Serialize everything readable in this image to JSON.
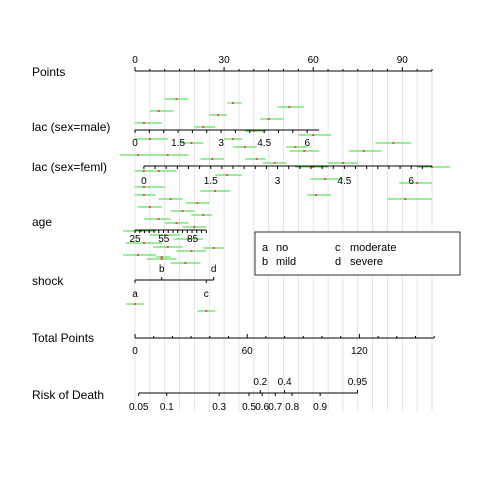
{
  "chart_data": {
    "type": "nomogram",
    "legend": {
      "position": "right",
      "entries": [
        {
          "code": "a",
          "label": "no"
        },
        {
          "code": "b",
          "label": "mild"
        },
        {
          "code": "c",
          "label": "moderate"
        },
        {
          "code": "d",
          "label": "severe"
        }
      ]
    },
    "scales": [
      {
        "id": "points",
        "label": "Points",
        "min": 0,
        "max": 100,
        "labels": [
          {
            "value": 0,
            "text": "0"
          },
          {
            "value": 30,
            "text": "30"
          },
          {
            "value": 60,
            "text": "60"
          },
          {
            "value": 90,
            "text": "90"
          }
        ],
        "minor_step": 5
      },
      {
        "id": "lac_male",
        "label": "lac (sex=male)",
        "points_range": [
          0,
          62
        ],
        "labels": [
          {
            "text": "0",
            "points": 0
          },
          {
            "text": "1.5",
            "points": 14.5
          },
          {
            "text": "3",
            "points": 29
          },
          {
            "text": "4.5",
            "points": 43.5
          },
          {
            "text": "6",
            "points": 58
          }
        ]
      },
      {
        "id": "lac_feml",
        "label": "lac (sex=feml)",
        "points_range": [
          3,
          100
        ],
        "labels": [
          {
            "text": "0",
            "points": 3
          },
          {
            "text": "1.5",
            "points": 25.5
          },
          {
            "text": "3",
            "points": 48
          },
          {
            "text": "4.5",
            "points": 70.5
          },
          {
            "text": "6",
            "points": 93
          }
        ]
      },
      {
        "id": "age",
        "label": "age",
        "points_range": [
          0,
          24
        ],
        "labels": [
          {
            "text": "25",
            "points": 0
          },
          {
            "text": "55",
            "points": 9.7
          },
          {
            "text": "85",
            "points": 19.4
          }
        ]
      },
      {
        "id": "shock",
        "label": "shock",
        "levels": [
          {
            "code": "b",
            "points": 9,
            "label_side": "above"
          },
          {
            "code": "d",
            "points": 26.5,
            "label_side": "above"
          },
          {
            "code": "a",
            "points": 0,
            "label_side": "below"
          },
          {
            "code": "c",
            "points": 24,
            "label_side": "below"
          }
        ]
      },
      {
        "id": "total_points",
        "label": "Total Points",
        "min": 0,
        "max": 160,
        "labels": [
          {
            "value": 0,
            "text": "0"
          },
          {
            "value": 60,
            "text": "60"
          },
          {
            "value": 120,
            "text": "120"
          }
        ],
        "minor_step": 10
      },
      {
        "id": "risk",
        "label": "Risk of Death",
        "labels_above": [
          {
            "text": "0.2",
            "total": 67
          },
          {
            "text": "0.4",
            "total": 80
          },
          {
            "text": "0.95",
            "total": 119
          }
        ],
        "labels_below": [
          {
            "text": "0.05",
            "total": 2
          },
          {
            "text": "0.1",
            "total": 17
          },
          {
            "text": "0.3",
            "total": 45
          },
          {
            "text": "0.5",
            "total": 61
          },
          {
            "text": "0.6",
            "total": 68
          },
          {
            "text": "0.7",
            "total": 75
          },
          {
            "text": "0.8",
            "total": 84
          },
          {
            "text": "0.9",
            "total": 99
          }
        ]
      }
    ],
    "intervals": [
      {
        "row": "lac_male",
        "center": 14,
        "low": 10,
        "high": 18
      },
      {
        "row": "lac_male",
        "center": 33,
        "low": 31,
        "high": 36
      },
      {
        "row": "lac_male",
        "center": 52,
        "low": 48,
        "high": 57
      },
      {
        "row": "lac_male",
        "center": 8,
        "low": 5,
        "high": 13
      },
      {
        "row": "lac_male",
        "center": 28,
        "low": 25,
        "high": 31
      },
      {
        "row": "lac_male",
        "center": 45,
        "low": 42,
        "high": 50
      },
      {
        "row": "lac_male",
        "center": 3,
        "low": 0,
        "high": 9
      },
      {
        "row": "lac_male",
        "center": 23,
        "low": 20,
        "high": 27
      },
      {
        "row": "lac_male",
        "center": 40,
        "low": 37,
        "high": 44
      },
      {
        "row": "lac_male",
        "center": 60,
        "low": 55,
        "high": 66
      },
      {
        "row": "lac_male",
        "center": 5,
        "low": 0,
        "high": 11
      },
      {
        "row": "lac_male",
        "center": 19,
        "low": 15,
        "high": 23
      },
      {
        "row": "lac_male",
        "center": 37,
        "low": 33,
        "high": 41
      },
      {
        "row": "lac_male",
        "center": 57,
        "low": 52,
        "high": 62
      },
      {
        "row": "lac_male",
        "center": 1,
        "low": -5,
        "high": 7
      },
      {
        "row": "lac_male",
        "center": 26,
        "low": 22,
        "high": 30
      },
      {
        "row": "lac_male",
        "center": 47,
        "low": 43,
        "high": 51
      },
      {
        "row": "lac_male",
        "center": 60,
        "low": 54,
        "high": 65
      },
      {
        "row": "lac_male",
        "center": 3,
        "low": 0,
        "high": 8
      },
      {
        "row": "lac_feml",
        "center": 33,
        "low": 30,
        "high": 36
      },
      {
        "row": "lac_feml",
        "center": 87,
        "low": 81,
        "high": 93
      },
      {
        "row": "lac_feml",
        "center": 54,
        "low": 51,
        "high": 58
      },
      {
        "row": "lac_feml",
        "center": 77,
        "low": 72,
        "high": 83
      },
      {
        "row": "lac_feml",
        "center": 11,
        "low": 3,
        "high": 18
      },
      {
        "row": "lac_feml",
        "center": 41,
        "low": 37,
        "high": 44
      },
      {
        "row": "lac_feml",
        "center": 70,
        "low": 65,
        "high": 75
      },
      {
        "row": "lac_feml",
        "center": 100,
        "low": 95,
        "high": 106
      },
      {
        "row": "lac_feml",
        "center": 8,
        "low": 4,
        "high": 14
      },
      {
        "row": "lac_feml",
        "center": 31,
        "low": 27,
        "high": 36
      },
      {
        "row": "lac_feml",
        "center": 64,
        "low": 59,
        "high": 70
      },
      {
        "row": "lac_feml",
        "center": 95,
        "low": 89,
        "high": 100
      },
      {
        "row": "lac_feml",
        "center": 3,
        "low": 0,
        "high": 10
      },
      {
        "row": "lac_feml",
        "center": 27,
        "low": 22,
        "high": 32
      },
      {
        "row": "lac_feml",
        "center": 61,
        "low": 58,
        "high": 66
      },
      {
        "row": "lac_feml",
        "center": 91,
        "low": 85,
        "high": 100
      },
      {
        "row": "age",
        "center": 3,
        "low": 0,
        "high": 7
      },
      {
        "row": "age",
        "center": 12,
        "low": 8,
        "high": 16
      },
      {
        "row": "age",
        "center": 21,
        "low": 17,
        "high": 25
      },
      {
        "row": "age",
        "center": 5,
        "low": 1,
        "high": 9
      },
      {
        "row": "age",
        "center": 16,
        "low": 12,
        "high": 20
      },
      {
        "row": "age",
        "center": 23,
        "low": 19,
        "high": 26
      },
      {
        "row": "age",
        "center": 8,
        "low": 3,
        "high": 12
      },
      {
        "row": "age",
        "center": 14,
        "low": 10,
        "high": 18
      },
      {
        "row": "age",
        "center": 20,
        "low": 16,
        "high": 24
      },
      {
        "row": "age",
        "center": 2,
        "low": -4,
        "high": 7
      },
      {
        "row": "age",
        "center": 10,
        "low": 5,
        "high": 15
      },
      {
        "row": "age",
        "center": 18,
        "low": 13,
        "high": 23
      },
      {
        "row": "age",
        "center": 3,
        "low": -3,
        "high": 9
      },
      {
        "row": "age",
        "center": 11,
        "low": 6,
        "high": 16
      },
      {
        "row": "age",
        "center": 19,
        "low": 14,
        "high": 24
      },
      {
        "row": "age",
        "center": 1,
        "low": -4,
        "high": 7
      },
      {
        "row": "age",
        "center": 9,
        "low": 4,
        "high": 14
      },
      {
        "row": "age",
        "center": 17,
        "low": 12,
        "high": 22
      },
      {
        "row": "shock",
        "center": 26.5,
        "low": 23,
        "high": 30
      },
      {
        "row": "shock",
        "center": 9,
        "low": 7,
        "high": 12
      },
      {
        "row": "shock",
        "center": 0,
        "low": -3,
        "high": 3
      },
      {
        "row": "shock",
        "center": 24,
        "low": 21,
        "high": 27
      }
    ],
    "colors": {
      "interval_line": "#33dd33",
      "interval_center": "#ee2222",
      "gridline": "#dcdcdc",
      "axis": "#000000"
    }
  }
}
